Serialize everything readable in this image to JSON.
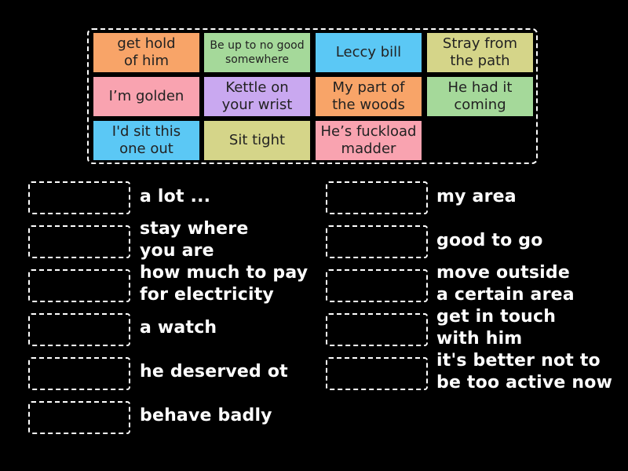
{
  "tiles": [
    {
      "label": "get hold\nof him",
      "color": "#f8a468"
    },
    {
      "label": "Be up to no good\nsomewhere",
      "color": "#a5d99a"
    },
    {
      "label": "Leccy bill",
      "color": "#5bc8f5"
    },
    {
      "label": "Stray from\nthe path",
      "color": "#d5d589"
    },
    {
      "label": "I’m golden",
      "color": "#f9a3b0"
    },
    {
      "label": "Kettle on\nyour wrist",
      "color": "#c9a8f0"
    },
    {
      "label": "My part of\nthe woods",
      "color": "#f8a468"
    },
    {
      "label": "He had it\ncoming",
      "color": "#a5d99a"
    },
    {
      "label": "I'd sit this\none out",
      "color": "#5bc8f5"
    },
    {
      "label": "Sit tight",
      "color": "#d5d589"
    },
    {
      "label": "He’s fuckload\nmadder",
      "color": "#f9a3b0"
    }
  ],
  "definitions_left": [
    "a lot ...",
    "stay where\nyou are",
    "how much to pay\nfor electricity",
    "a watch",
    "he deserved ot",
    "behave badly"
  ],
  "definitions_right": [
    "my area",
    "good to go",
    "move outside\na certain area",
    "get in touch\nwith him",
    "it's better not to\nbe too active now"
  ]
}
